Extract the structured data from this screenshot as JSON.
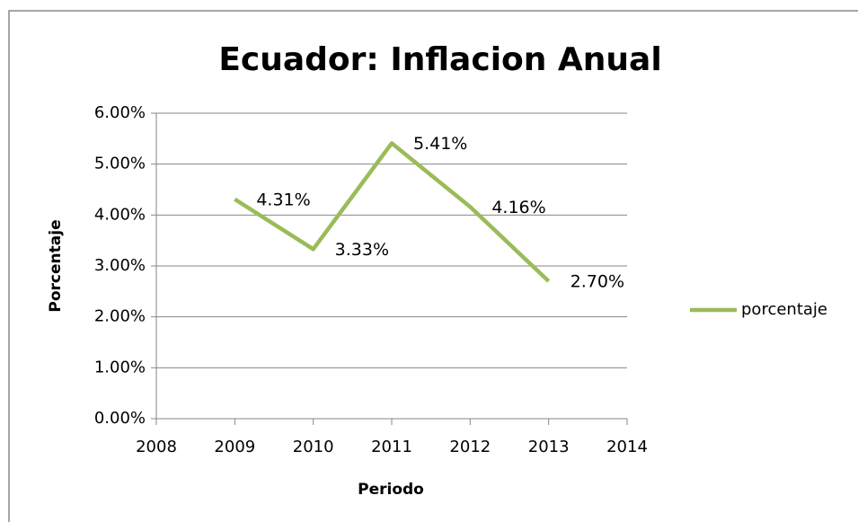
{
  "chart_data": {
    "type": "line",
    "title": "Ecuador: Inflacion Anual",
    "x_label": "Periodo",
    "y_label": "Porcentaje",
    "x": [
      2009,
      2010,
      2011,
      2012,
      2013
    ],
    "series": [
      {
        "name": "porcentaje",
        "color": "#9bbb59",
        "values": [
          4.31,
          3.33,
          5.41,
          4.16,
          2.7
        ],
        "value_labels": [
          "4.31%",
          "3.33%",
          "5.41%",
          "4.16%",
          "2.70%"
        ]
      }
    ],
    "xlim": [
      2008,
      2014
    ],
    "xticks": [
      2008,
      2009,
      2010,
      2011,
      2012,
      2013,
      2014
    ],
    "ylim": [
      0,
      6
    ],
    "yticks": [
      {
        "value": 0,
        "label": "0.00%"
      },
      {
        "value": 1,
        "label": "1.00%"
      },
      {
        "value": 2,
        "label": "2.00%"
      },
      {
        "value": 3,
        "label": "3.00%"
      },
      {
        "value": 4,
        "label": "4.00%"
      },
      {
        "value": 5,
        "label": "5.00%"
      },
      {
        "value": 6,
        "label": "6.00%"
      }
    ],
    "grid": true,
    "legend": "right"
  }
}
